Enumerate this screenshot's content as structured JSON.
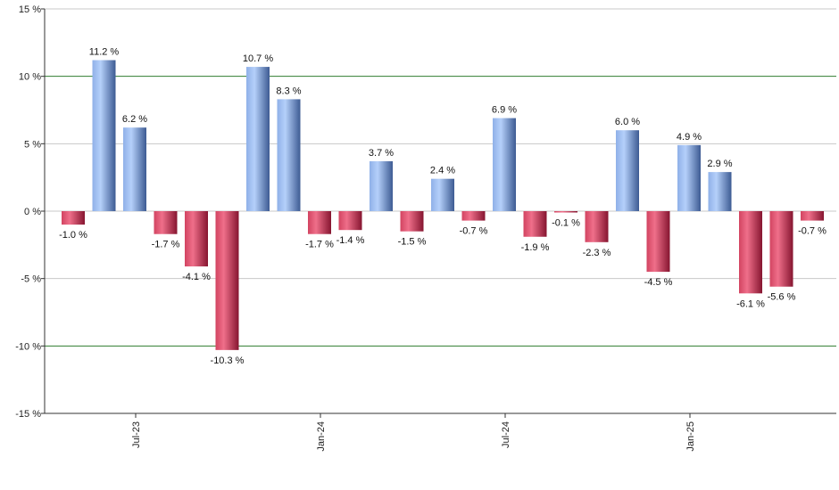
{
  "chart_data": {
    "type": "bar",
    "values": [
      -1.0,
      11.2,
      6.2,
      -1.7,
      -4.1,
      -10.3,
      10.7,
      8.3,
      -1.7,
      -1.4,
      3.7,
      -1.5,
      2.4,
      -0.7,
      6.9,
      -1.9,
      -0.1,
      -2.3,
      6.0,
      -4.5,
      4.9,
      2.9,
      -6.1,
      -5.6,
      -0.7
    ],
    "labels": [
      "-1.0 %",
      "11.2 %",
      "6.2 %",
      "-1.7 %",
      "-4.1 %",
      "-10.3 %",
      "10.7 %",
      "8.3 %",
      "-1.7 %",
      "-1.4 %",
      "3.7 %",
      "-1.5 %",
      "2.4 %",
      "-0.7 %",
      "6.9 %",
      "-1.9 %",
      "-0.1 %",
      "-2.3 %",
      "6.0 %",
      "-4.5 %",
      "4.9 %",
      "2.9 %",
      "-6.1 %",
      "-5.6 %",
      "-0.7 %"
    ],
    "ylim": [
      -15,
      15
    ],
    "yticks": [
      15,
      10,
      5,
      0,
      -5,
      -10,
      -15
    ],
    "ytick_labels": [
      "15 %",
      "10 %",
      "5 %",
      "0 %",
      "-5 %",
      "-10 %",
      "-15 %"
    ],
    "xtick_labels": [
      "Jul-23",
      "Jan-24",
      "Jul-24",
      "Jan-25"
    ],
    "xtick_positions": [
      2,
      8,
      14,
      20
    ],
    "highlight_gridlines": [
      10,
      -10
    ],
    "grid": true,
    "colors": {
      "positive_light": "#a9c7f5",
      "positive_dark": "#3f5f9a",
      "negative_light": "#e8607c",
      "negative_dark": "#8e1a34",
      "grid": "#c8c8c8",
      "grid_highlight": "#2f7d2f",
      "axis": "#333333"
    }
  }
}
